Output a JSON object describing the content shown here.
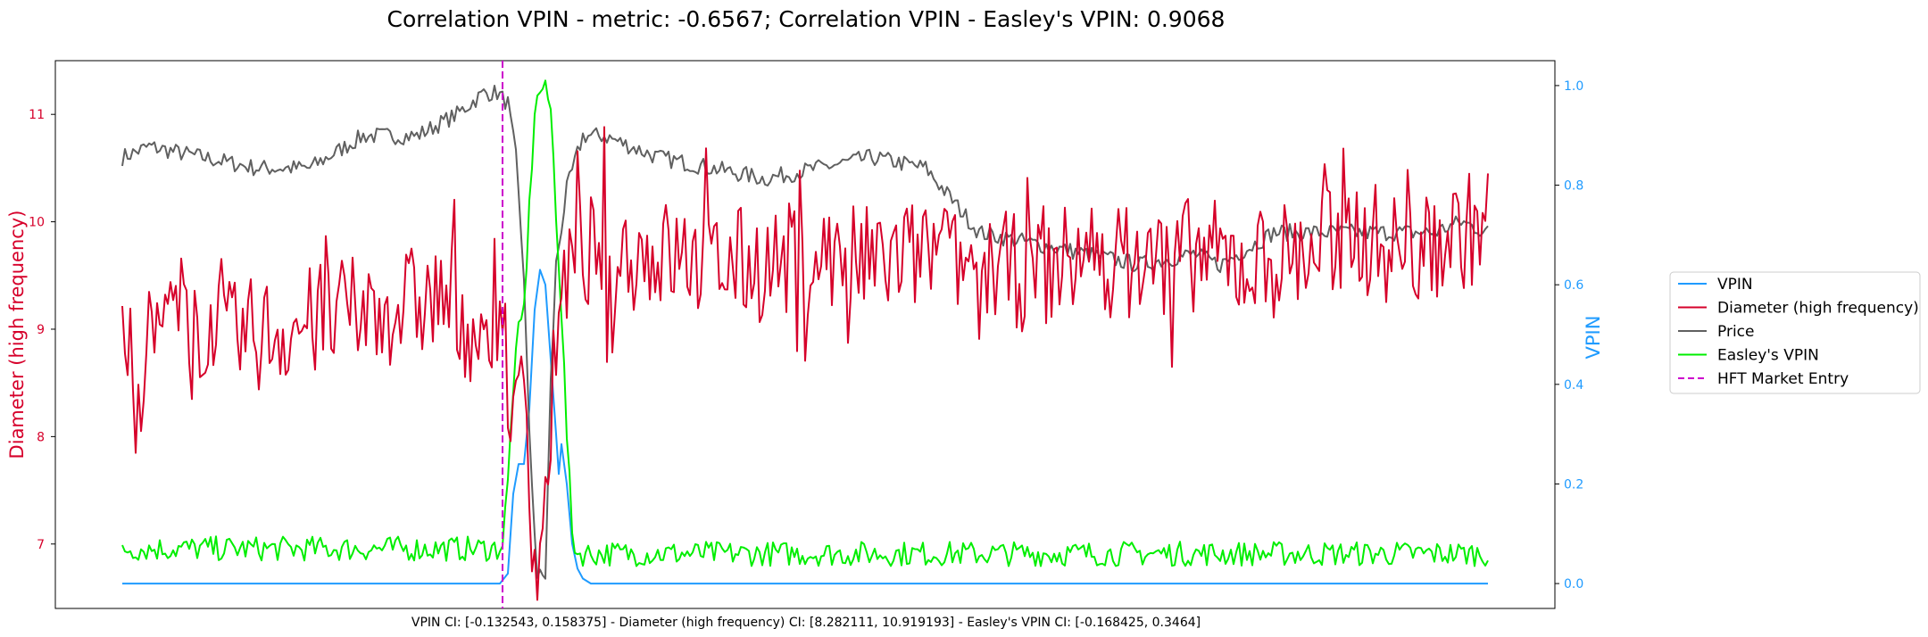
{
  "chart_data": {
    "type": "line",
    "title": "Correlation VPIN - metric: -0.6567; Correlation VPIN - Easley's VPIN: 0.9068",
    "footer": "VPIN CI: [-0.132543, 0.158375] - Diameter (high frequency) CI: [8.282111, 10.919193] - Easley's VPIN CI: [-0.168425, 0.3464]",
    "xlabel": "",
    "left_axis": {
      "label": "Diameter (high frequency)",
      "color": "#d6002a",
      "ylim": [
        6.4,
        11.5
      ],
      "ticks": [
        7,
        8,
        9,
        10,
        11
      ]
    },
    "right_axis": {
      "label": "VPIN",
      "color": "#1f9bff",
      "ylim": [
        -0.05,
        1.05
      ],
      "ticks": [
        0.0,
        0.2,
        0.4,
        0.6,
        0.8,
        1.0
      ]
    },
    "xlim": [
      -25,
      535
    ],
    "hft_entry_x": 142,
    "legend_position": "right",
    "legend": [
      "VPIN",
      "Diameter (high frequency)",
      "Price",
      "Easley's VPIN",
      "HFT Market Entry"
    ],
    "series": [
      {
        "name": "VPIN",
        "axis": "right",
        "color": "#1f9bff",
        "style": "solid",
        "points": [
          [
            0,
            0.0
          ],
          [
            141,
            0.0
          ],
          [
            144,
            0.02
          ],
          [
            146,
            0.18
          ],
          [
            148,
            0.24
          ],
          [
            150,
            0.24
          ],
          [
            152,
            0.35
          ],
          [
            154,
            0.55
          ],
          [
            156,
            0.63
          ],
          [
            158,
            0.6
          ],
          [
            160,
            0.45
          ],
          [
            162,
            0.3
          ],
          [
            163,
            0.22
          ],
          [
            164,
            0.28
          ],
          [
            166,
            0.2
          ],
          [
            168,
            0.08
          ],
          [
            170,
            0.03
          ],
          [
            172,
            0.01
          ],
          [
            175,
            0.0
          ],
          [
            510,
            0.0
          ]
        ]
      },
      {
        "name": "Diameter (high frequency)",
        "axis": "left",
        "color": "#d6002a",
        "style": "solid",
        "noisy": true,
        "points": [
          [
            0,
            8.6
          ],
          [
            20,
            9.2
          ],
          [
            40,
            8.9
          ],
          [
            60,
            9.0
          ],
          [
            80,
            9.1
          ],
          [
            100,
            9.2
          ],
          [
            120,
            9.3
          ],
          [
            138,
            8.8
          ],
          [
            142,
            9.3
          ],
          [
            146,
            7.9
          ],
          [
            150,
            8.7
          ],
          [
            154,
            6.8
          ],
          [
            158,
            7.3
          ],
          [
            162,
            9.0
          ],
          [
            170,
            9.7
          ],
          [
            185,
            9.7
          ],
          [
            200,
            9.7
          ],
          [
            220,
            9.6
          ],
          [
            240,
            9.6
          ],
          [
            260,
            9.7
          ],
          [
            280,
            9.6
          ],
          [
            300,
            9.7
          ],
          [
            320,
            9.6
          ],
          [
            340,
            9.5
          ],
          [
            360,
            9.7
          ],
          [
            380,
            9.6
          ],
          [
            400,
            9.7
          ],
          [
            420,
            9.6
          ],
          [
            440,
            9.7
          ],
          [
            460,
            9.9
          ],
          [
            480,
            9.7
          ],
          [
            500,
            9.9
          ],
          [
            510,
            10.0
          ]
        ],
        "spread": 0.55
      },
      {
        "name": "Price",
        "axis": "left",
        "color": "#606060",
        "style": "solid",
        "noisy": true,
        "points": [
          [
            0,
            10.6
          ],
          [
            10,
            10.7
          ],
          [
            30,
            10.6
          ],
          [
            50,
            10.5
          ],
          [
            70,
            10.5
          ],
          [
            90,
            10.8
          ],
          [
            110,
            10.8
          ],
          [
            125,
            11.0
          ],
          [
            135,
            11.2
          ],
          [
            140,
            11.2
          ],
          [
            144,
            11.1
          ],
          [
            147,
            10.6
          ],
          [
            150,
            9.5
          ],
          [
            152,
            8.0
          ],
          [
            155,
            6.7
          ],
          [
            158,
            6.7
          ],
          [
            160,
            8.5
          ],
          [
            162,
            9.6
          ],
          [
            166,
            10.3
          ],
          [
            172,
            10.8
          ],
          [
            180,
            10.8
          ],
          [
            200,
            10.6
          ],
          [
            220,
            10.5
          ],
          [
            240,
            10.4
          ],
          [
            260,
            10.5
          ],
          [
            280,
            10.6
          ],
          [
            300,
            10.5
          ],
          [
            310,
            10.2
          ],
          [
            320,
            9.9
          ],
          [
            340,
            9.8
          ],
          [
            360,
            9.7
          ],
          [
            380,
            9.6
          ],
          [
            400,
            9.7
          ],
          [
            410,
            9.6
          ],
          [
            430,
            9.9
          ],
          [
            450,
            9.9
          ],
          [
            470,
            9.9
          ],
          [
            490,
            9.9
          ],
          [
            500,
            10.0
          ],
          [
            510,
            9.9
          ]
        ],
        "spread": 0.08
      },
      {
        "name": "Easley's VPIN",
        "axis": "right",
        "color": "#00ee00",
        "style": "solid",
        "noisy": true,
        "points": [
          [
            0,
            0.07
          ],
          [
            140,
            0.07
          ],
          [
            142,
            0.08
          ],
          [
            144,
            0.2
          ],
          [
            146,
            0.4
          ],
          [
            148,
            0.5
          ],
          [
            150,
            0.55
          ],
          [
            152,
            0.75
          ],
          [
            154,
            0.95
          ],
          [
            156,
            0.99
          ],
          [
            158,
            1.0
          ],
          [
            160,
            0.95
          ],
          [
            162,
            0.75
          ],
          [
            164,
            0.55
          ],
          [
            166,
            0.3
          ],
          [
            168,
            0.1
          ],
          [
            170,
            0.06
          ],
          [
            510,
            0.06
          ]
        ],
        "spread": 0.025
      }
    ],
    "noise_seed": 7
  }
}
